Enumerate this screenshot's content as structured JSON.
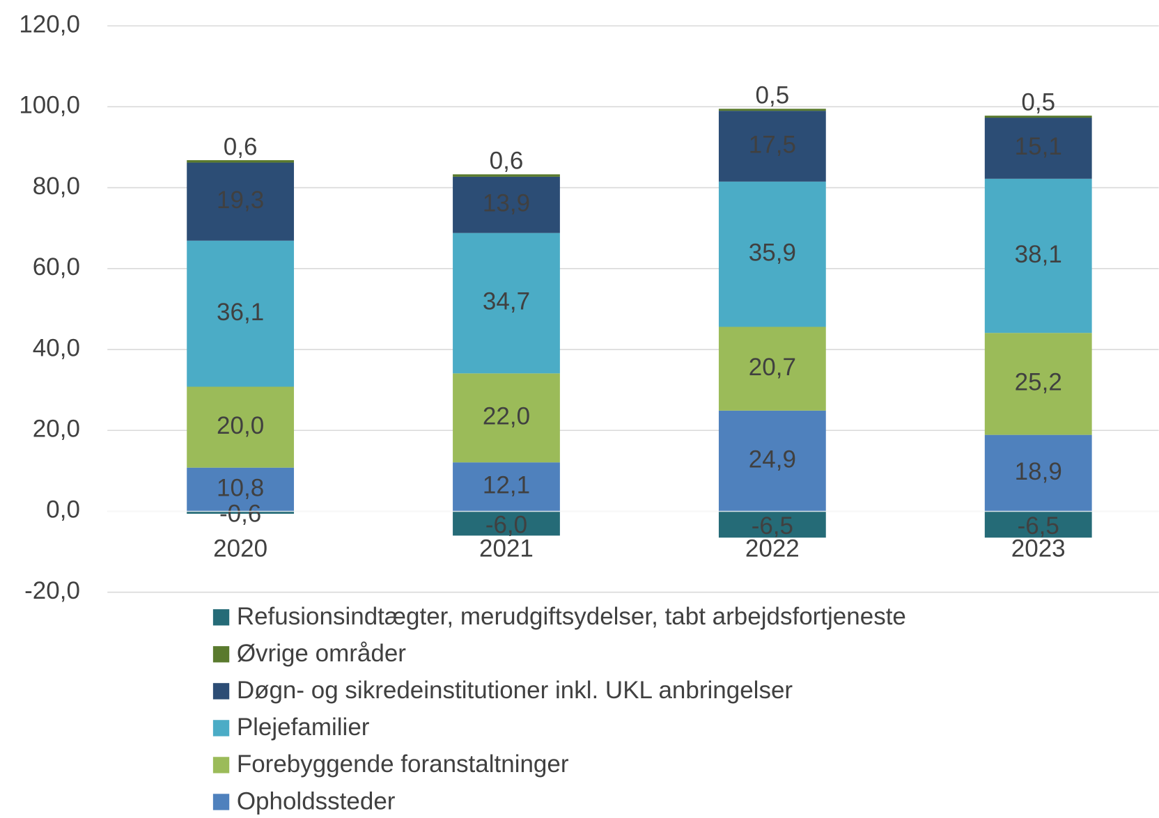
{
  "chart_data": {
    "type": "stacked_bar",
    "categories": [
      "2020",
      "2021",
      "2022",
      "2023"
    ],
    "series": [
      {
        "name": "Refusionsindtægter, merudgiftsydelser, tabt arbejdsfortjeneste",
        "color": "#256b77",
        "values": [
          -0.6,
          -6.0,
          -6.5,
          -6.5
        ],
        "value_labels": [
          "-0,6",
          "-6,0",
          "-6,5",
          "-6,5"
        ]
      },
      {
        "name": "Øvrige områder",
        "color": "#5a7a2e",
        "values": [
          0.6,
          0.6,
          0.5,
          0.5
        ],
        "value_labels": [
          "0,6",
          "0,6",
          "0,5",
          "0,5"
        ]
      },
      {
        "name": "Døgn- og sikredeinstitutioner inkl. UKL anbringelser",
        "color": "#2c4d75",
        "values": [
          19.3,
          13.9,
          17.5,
          15.1
        ],
        "value_labels": [
          "19,3",
          "13,9",
          "17,5",
          "15,1"
        ]
      },
      {
        "name": "Plejefamilier",
        "color": "#4bacc6",
        "values": [
          36.1,
          34.7,
          35.9,
          38.1
        ],
        "value_labels": [
          "36,1",
          "34,7",
          "35,9",
          "38,1"
        ]
      },
      {
        "name": "Forebyggende foranstaltninger",
        "color": "#9bbb59",
        "values": [
          20.0,
          22.0,
          20.7,
          25.2
        ],
        "value_labels": [
          "20,0",
          "22,0",
          "20,7",
          "25,2"
        ]
      },
      {
        "name": "Opholdssteder",
        "color": "#4f81bd",
        "values": [
          10.8,
          12.1,
          24.9,
          18.9
        ],
        "value_labels": [
          "10,8",
          "12,1",
          "24,9",
          "18,9"
        ]
      }
    ],
    "ylim": [
      -20,
      120
    ],
    "yticks": [
      {
        "value": -20,
        "label": "-20,0"
      },
      {
        "value": 0,
        "label": "0,0"
      },
      {
        "value": 20,
        "label": "20,0"
      },
      {
        "value": 40,
        "label": "40,0"
      },
      {
        "value": 60,
        "label": "60,0"
      },
      {
        "value": 80,
        "label": "80,0"
      },
      {
        "value": 100,
        "label": "100,0"
      },
      {
        "value": 120,
        "label": "120,0"
      }
    ],
    "grid": true,
    "legend": "bottom"
  }
}
